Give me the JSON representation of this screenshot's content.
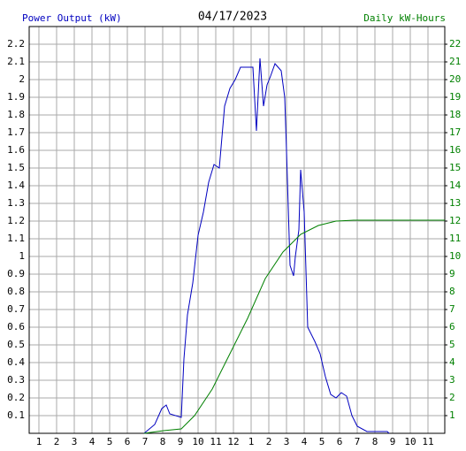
{
  "chart_data": {
    "type": "line",
    "title": "04/17/2023",
    "y_label": "Power Output (kW)",
    "y2_label": "Daily kW-Hours",
    "grid": true,
    "xlim": [
      0.45,
      23.95
    ],
    "xticks": [
      1,
      2,
      3,
      4,
      5,
      6,
      7,
      8,
      9,
      10,
      11,
      12,
      {
        "value": 13,
        "label": "1"
      },
      {
        "value": 14,
        "label": "2"
      },
      {
        "value": 15,
        "label": "3"
      },
      {
        "value": 16,
        "label": "4"
      },
      {
        "value": 17,
        "label": "5"
      },
      {
        "value": 18,
        "label": "6"
      },
      {
        "value": 19,
        "label": "7"
      },
      {
        "value": 20,
        "label": "8"
      },
      {
        "value": 21,
        "label": "9"
      },
      {
        "value": 22,
        "label": "10"
      },
      {
        "value": 23,
        "label": "11"
      }
    ],
    "ylim": [
      0,
      2.3
    ],
    "yticks": [
      0.1,
      0.2,
      0.3,
      0.4,
      0.5,
      0.6,
      0.7,
      0.8,
      0.9,
      1.0,
      1.1,
      1.2,
      1.3,
      1.4,
      1.5,
      1.6,
      1.7,
      1.8,
      1.9,
      2.0,
      2.1,
      2.2
    ],
    "y2lim": [
      0,
      23
    ],
    "y2ticks": [
      1,
      2,
      3,
      4,
      5,
      6,
      7,
      8,
      9,
      10,
      11,
      12,
      13,
      14,
      15,
      16,
      17,
      18,
      19,
      20,
      21,
      22
    ],
    "series": [
      {
        "name": "Power Output (kW)",
        "color": "#0000c0",
        "x": [
          6.95,
          7.55,
          7.95,
          8.2,
          8.4,
          9.05,
          9.2,
          9.4,
          9.7,
          10.0,
          10.3,
          10.6,
          10.9,
          11.2,
          11.5,
          11.8,
          12.1,
          12.4,
          13.1,
          13.3,
          13.5,
          13.7,
          13.9,
          14.1,
          14.35,
          14.7,
          14.9,
          15.0,
          15.2,
          15.4,
          15.5,
          15.7,
          15.8,
          16.0,
          16.2,
          16.6,
          16.9,
          17.2,
          17.5,
          17.8,
          18.1,
          18.4,
          18.7,
          19.0,
          19.55,
          20.7,
          20.8
        ],
        "values": [
          0,
          0.05,
          0.14,
          0.16,
          0.11,
          0.09,
          0.42,
          0.67,
          0.85,
          1.12,
          1.25,
          1.42,
          1.52,
          1.5,
          1.85,
          1.95,
          2.0,
          2.07,
          2.07,
          1.71,
          2.12,
          1.85,
          1.97,
          2.02,
          2.09,
          2.05,
          1.9,
          1.6,
          0.95,
          0.89,
          1.0,
          1.15,
          1.49,
          1.25,
          0.6,
          0.52,
          0.45,
          0.32,
          0.22,
          0.2,
          0.23,
          0.21,
          0.1,
          0.04,
          0.01,
          0.01,
          0
        ]
      },
      {
        "name": "Daily kW-Hours",
        "color": "#008000",
        "axis": "y2",
        "x": [
          6.95,
          8.05,
          9.05,
          9.8,
          10.8,
          11.8,
          12.8,
          13.8,
          14.8,
          15.8,
          16.8,
          17.8,
          18.8,
          23.95
        ],
        "values": [
          0,
          0.15,
          0.25,
          1.0,
          2.5,
          4.5,
          6.5,
          8.75,
          10.25,
          11.25,
          11.75,
          12.0,
          12.05,
          12.05
        ]
      }
    ]
  }
}
